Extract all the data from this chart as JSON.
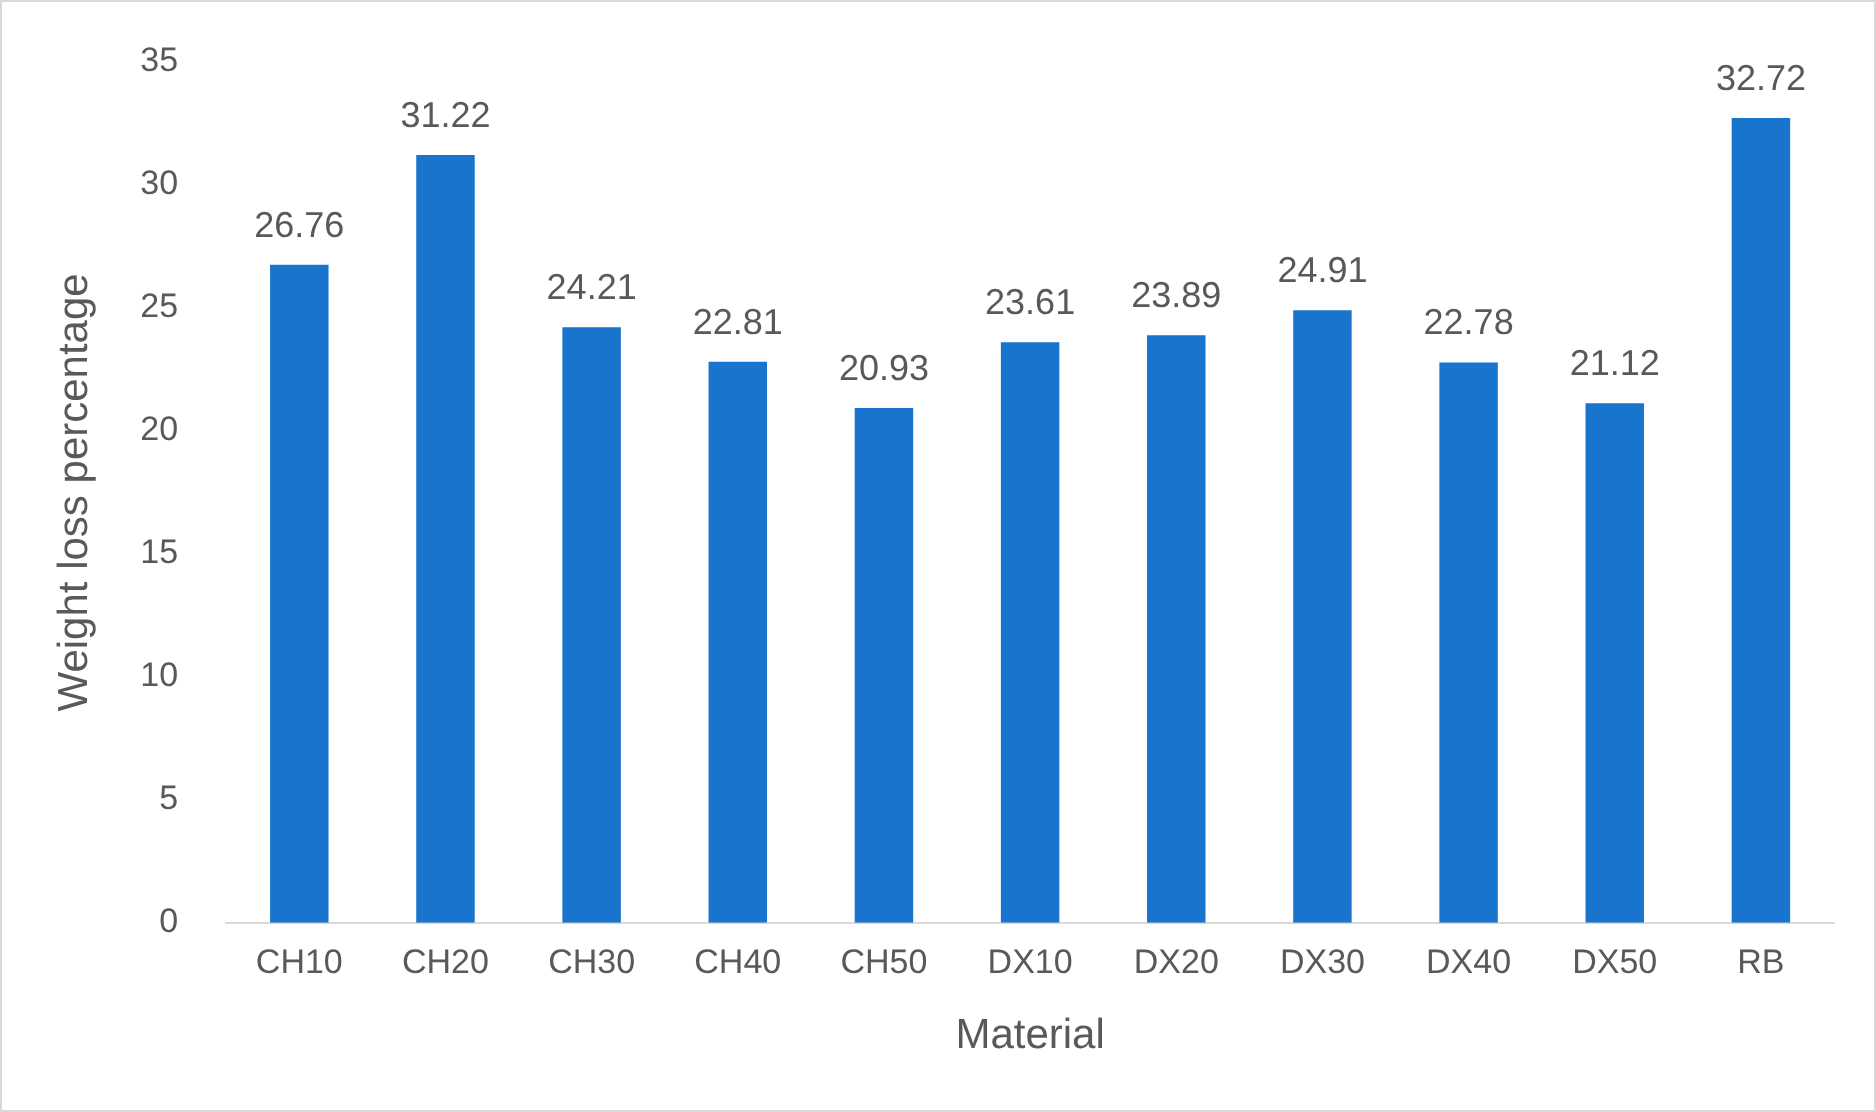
{
  "chart_data": {
    "type": "bar",
    "xlabel": "Material",
    "ylabel": "Weight loss percentage",
    "categories": [
      "CH10",
      "CH20",
      "CH30",
      "CH40",
      "CH50",
      "DX10",
      "DX20",
      "DX30",
      "DX40",
      "DX50",
      "RB"
    ],
    "values": [
      26.76,
      31.22,
      24.21,
      22.81,
      20.93,
      23.61,
      23.89,
      24.91,
      22.78,
      21.12,
      32.72
    ],
    "color": "#1874cd",
    "ylim": [
      0,
      35
    ],
    "yticks": [
      0,
      5,
      10,
      15,
      20,
      25,
      30,
      35
    ],
    "grid": false,
    "data_labels": true,
    "legend": false
  }
}
